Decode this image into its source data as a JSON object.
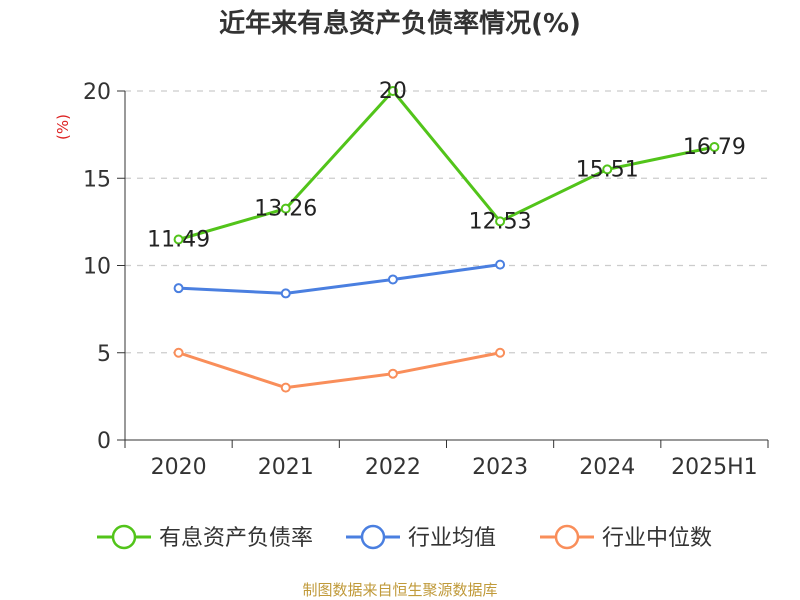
{
  "chart_data": {
    "type": "line",
    "title": "近年来有息资产负债率情况(%)",
    "ylabel": "(%)",
    "categories": [
      "2020",
      "2021",
      "2022",
      "2023",
      "2024",
      "2025H1"
    ],
    "ylim": [
      0,
      20
    ],
    "yticks": [
      0,
      5,
      10,
      15,
      20
    ],
    "grid": true,
    "legend_position": "bottom",
    "series": [
      {
        "name": "有息资产负债率",
        "color": "#52c41a",
        "values": [
          11.49,
          13.26,
          20,
          12.53,
          15.51,
          16.79
        ],
        "labels": [
          "11.49",
          "13.26",
          "20",
          "12.53",
          "15.51",
          "16.79"
        ]
      },
      {
        "name": "行业均值",
        "color": "#4a7fe0",
        "values": [
          8.7,
          8.4,
          9.2,
          10.05,
          null,
          null
        ]
      },
      {
        "name": "行业中位数",
        "color": "#f98e5a",
        "values": [
          5.0,
          3.0,
          3.8,
          5.0,
          null,
          null
        ]
      }
    ]
  },
  "source": {
    "text": "制图数据来自恒生聚源数据库",
    "color": "#c09a3a"
  },
  "ylabel_color": "#dd2222"
}
